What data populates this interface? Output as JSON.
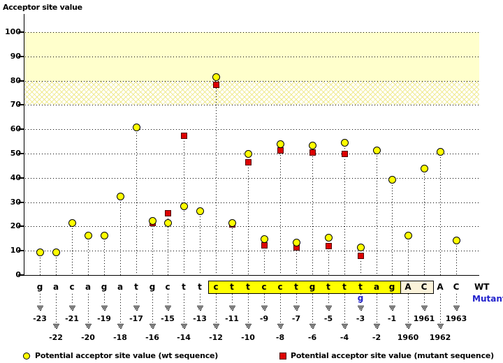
{
  "title": "Acceptor site value",
  "labels": {
    "wt": "WT",
    "mutant": "Mutant"
  },
  "legend": {
    "wt": "Potential acceptor site value (wt sequence)",
    "mutant": "Potential acceptor site value (mutant sequence)"
  },
  "colors": {
    "wt_marker": "#ffff00",
    "mutant_marker": "#dd0000",
    "mutant_text": "#2222cc",
    "band_solid": "#ffffcc",
    "highlight_box": "#ffff00",
    "exon_box": "#fbf3da"
  },
  "chart_data": {
    "type": "scatter",
    "title": "Acceptor site value",
    "ylabel": "Acceptor site value",
    "ylim": [
      0,
      108
    ],
    "y_ticks": [
      0,
      10,
      20,
      30,
      40,
      50,
      60,
      70,
      80,
      90,
      100
    ],
    "grid": "dotted horizontal at each tick",
    "bands": {
      "solid_yellow": [
        80,
        100
      ],
      "hatched_yellow": [
        70,
        80
      ]
    },
    "legend_position": "bottom",
    "series_names": [
      "wt",
      "mutant"
    ],
    "columns": [
      {
        "base": "g",
        "position": "-23",
        "wt": 9.5,
        "mutant": null,
        "label_row": "upper"
      },
      {
        "base": "a",
        "position": "-22",
        "wt": 9.5,
        "mutant": null,
        "label_row": "lower"
      },
      {
        "base": "c",
        "position": "-21",
        "wt": 21.5,
        "mutant": null,
        "label_row": "upper"
      },
      {
        "base": "a",
        "position": "-20",
        "wt": 16.5,
        "mutant": null,
        "label_row": "lower"
      },
      {
        "base": "g",
        "position": "-19",
        "wt": 16.5,
        "mutant": null,
        "label_row": "upper"
      },
      {
        "base": "a",
        "position": "-18",
        "wt": 32.5,
        "mutant": null,
        "label_row": "lower"
      },
      {
        "base": "t",
        "position": "-17",
        "wt": 61,
        "mutant": null,
        "label_row": "upper"
      },
      {
        "base": "g",
        "position": "-16",
        "wt": 22.5,
        "mutant": 21.5,
        "label_row": "lower"
      },
      {
        "base": "c",
        "position": "-15",
        "wt": 21.5,
        "mutant": 25.5,
        "label_row": "upper"
      },
      {
        "base": "t",
        "position": "-14",
        "wt": 28.5,
        "mutant": 57.5,
        "label_row": "lower"
      },
      {
        "base": "t",
        "position": "-13",
        "wt": 26.5,
        "mutant": null,
        "label_row": "upper"
      },
      {
        "base": "c",
        "position": "-12",
        "wt": 81.5,
        "mutant": 78.5,
        "label_row": "lower"
      },
      {
        "base": "t",
        "position": "-11",
        "wt": 21.5,
        "mutant": 21,
        "label_row": "upper"
      },
      {
        "base": "t",
        "position": "-10",
        "wt": 50,
        "mutant": 46.5,
        "label_row": "lower"
      },
      {
        "base": "c",
        "position": "-9",
        "wt": 15,
        "mutant": 12.5,
        "label_row": "upper"
      },
      {
        "base": "c",
        "position": "-8",
        "wt": 54,
        "mutant": 51.5,
        "label_row": "lower"
      },
      {
        "base": "t",
        "position": "-7",
        "wt": 13.5,
        "mutant": 11.5,
        "label_row": "upper"
      },
      {
        "base": "g",
        "position": "-6",
        "wt": 53.5,
        "mutant": 50.5,
        "label_row": "lower"
      },
      {
        "base": "t",
        "position": "-5",
        "wt": 15.5,
        "mutant": 12,
        "label_row": "upper"
      },
      {
        "base": "t",
        "position": "-4",
        "wt": 54.5,
        "mutant": 50,
        "label_row": "lower"
      },
      {
        "base": "t",
        "position": "-3",
        "wt": 11.5,
        "mutant": 8,
        "label_row": "upper"
      },
      {
        "base": "a",
        "position": "-2",
        "wt": 51.5,
        "mutant": null,
        "label_row": "lower"
      },
      {
        "base": "g",
        "position": "-1",
        "wt": 39.5,
        "mutant": null,
        "label_row": "upper"
      },
      {
        "base": "A",
        "position": "1960",
        "wt": 16.5,
        "mutant": null,
        "label_row": "lower"
      },
      {
        "base": "C",
        "position": "1961",
        "wt": 44,
        "mutant": null,
        "label_row": "upper"
      },
      {
        "base": "A",
        "position": "1962",
        "wt": 51,
        "mutant": null,
        "label_row": "lower"
      },
      {
        "base": "C",
        "position": "1963",
        "wt": 14.5,
        "mutant": null,
        "label_row": "upper"
      }
    ],
    "highlight_regions": [
      {
        "from_index": 11,
        "to_index": 22,
        "style": "yellow-filled"
      },
      {
        "from_index": 23,
        "to_index": 24,
        "style": "outlined-cream"
      }
    ],
    "mutation": {
      "index": 20,
      "wt_base": "t",
      "mutant_base": "g",
      "position": "-3"
    }
  }
}
